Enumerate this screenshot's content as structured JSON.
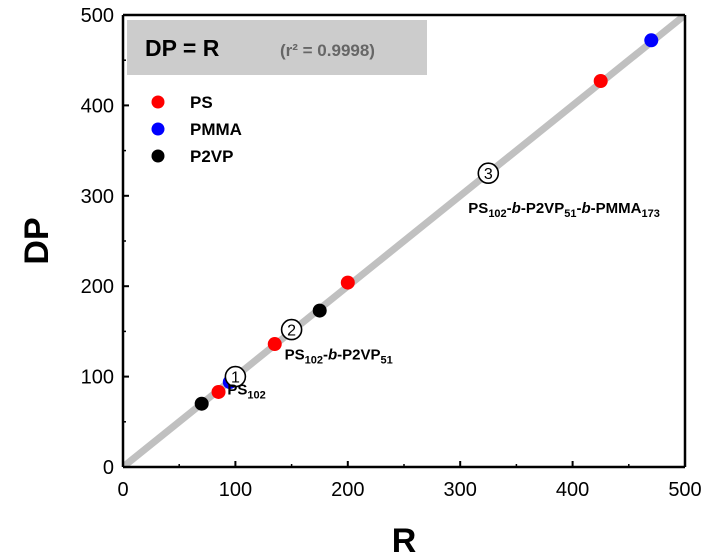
{
  "chart_data": {
    "type": "scatter",
    "xlabel": "R",
    "ylabel": "DP",
    "xlim": [
      0,
      500
    ],
    "ylim": [
      0,
      500
    ],
    "xticks": [
      "0",
      "100",
      "200",
      "300",
      "400",
      "500"
    ],
    "yticks": [
      "0",
      "100",
      "200",
      "300",
      "400",
      "500"
    ],
    "grid": false,
    "legend_position": "top-left",
    "fit_line": {
      "equation": "DP = R",
      "r2_text": "(r² = 0.9998)",
      "color": "#c0c0c0",
      "x": [
        0,
        500
      ],
      "y": [
        0,
        500
      ]
    },
    "series": [
      {
        "name": "PS",
        "color": "#ff0000",
        "x": [
          85,
          135,
          200,
          425
        ],
        "y": [
          83,
          136,
          204,
          427
        ]
      },
      {
        "name": "PMMA",
        "color": "#0000ff",
        "x": [
          95,
          470
        ],
        "y": [
          94,
          472
        ]
      },
      {
        "name": "P2VP",
        "color": "#000000",
        "x": [
          70,
          175
        ],
        "y": [
          70,
          173
        ]
      }
    ],
    "annotations": [
      {
        "number": "1",
        "label_parts": [
          [
            "PS",
            false,
            false
          ],
          [
            "102",
            true,
            false
          ]
        ],
        "at": [
          100,
          100
        ]
      },
      {
        "number": "2",
        "label_parts": [
          [
            "PS",
            false,
            false
          ],
          [
            "102",
            true,
            false
          ],
          [
            "-",
            false,
            false
          ],
          [
            "b",
            false,
            true
          ],
          [
            "-P2VP",
            false,
            false
          ],
          [
            "51",
            true,
            false
          ]
        ],
        "at": [
          150,
          152
        ]
      },
      {
        "number": "3",
        "label_parts": [
          [
            "PS",
            false,
            false
          ],
          [
            "102",
            true,
            false
          ],
          [
            "-",
            false,
            false
          ],
          [
            "b",
            false,
            true
          ],
          [
            "-P2VP",
            false,
            false
          ],
          [
            "51",
            true,
            false
          ],
          [
            "-",
            false,
            false
          ],
          [
            "b",
            false,
            true
          ],
          [
            "-PMMA",
            false,
            false
          ],
          [
            "173",
            true,
            false
          ]
        ],
        "at": [
          325,
          325
        ]
      }
    ]
  }
}
